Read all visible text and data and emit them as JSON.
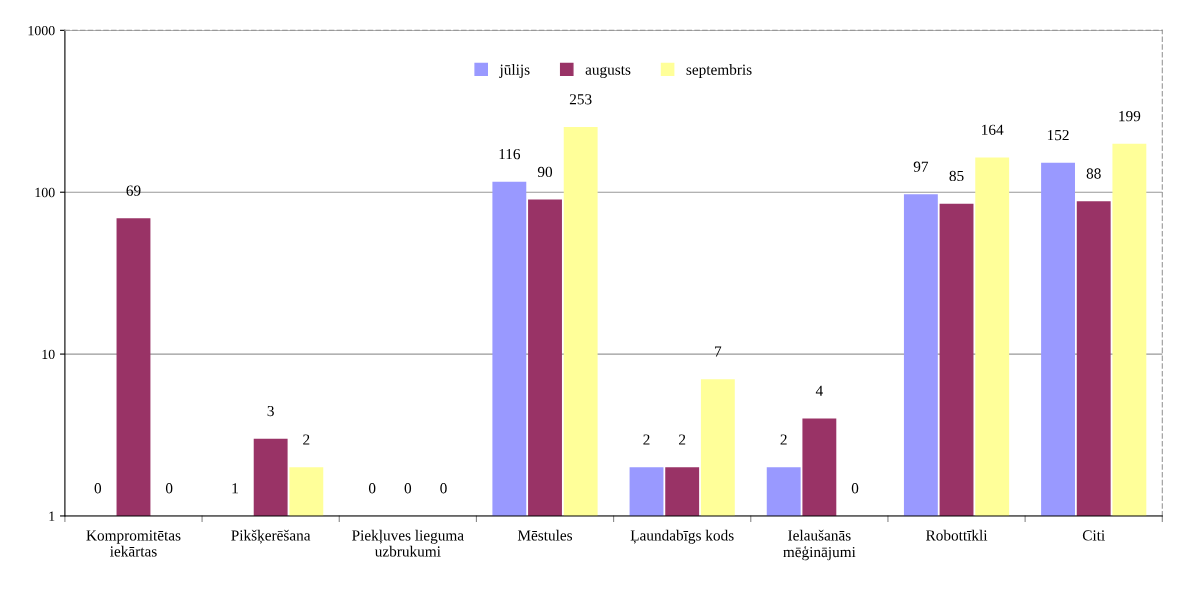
{
  "chart_data": {
    "type": "bar",
    "log": "y",
    "ylim": [
      1,
      1000
    ],
    "yticks": [
      1,
      10,
      100,
      1000
    ],
    "grid": "y",
    "legend": "top",
    "categories": [
      "Kompromitētas\niekārtas",
      "Pikšķerēšana",
      "Piekļuves lieguma\nuzbrukumi",
      "Mēstules",
      "Ļaundabīgs kods",
      "Ielaušanās\nmēģinājumi",
      "Robottīkli",
      "Citi"
    ],
    "series": [
      {
        "name": "jūlijs",
        "color": "#9999ff",
        "values": [
          null,
          null,
          null,
          116,
          2,
          2,
          97,
          152
        ],
        "value_labels": [
          "0",
          "1",
          "0",
          "116",
          "2",
          "2",
          "97",
          "152"
        ]
      },
      {
        "name": "augusts",
        "color": "#993366",
        "values": [
          69,
          3,
          null,
          90,
          2,
          4,
          85,
          88
        ],
        "value_labels": [
          "69",
          "3",
          "0",
          "90",
          "2",
          "4",
          "85",
          "88"
        ]
      },
      {
        "name": "septembris",
        "color": "#ffff99",
        "values": [
          null,
          2,
          null,
          253,
          7,
          null,
          164,
          199
        ],
        "value_labels": [
          "0",
          "2",
          "0",
          "253",
          "7",
          "0",
          "164",
          "199"
        ]
      }
    ]
  }
}
